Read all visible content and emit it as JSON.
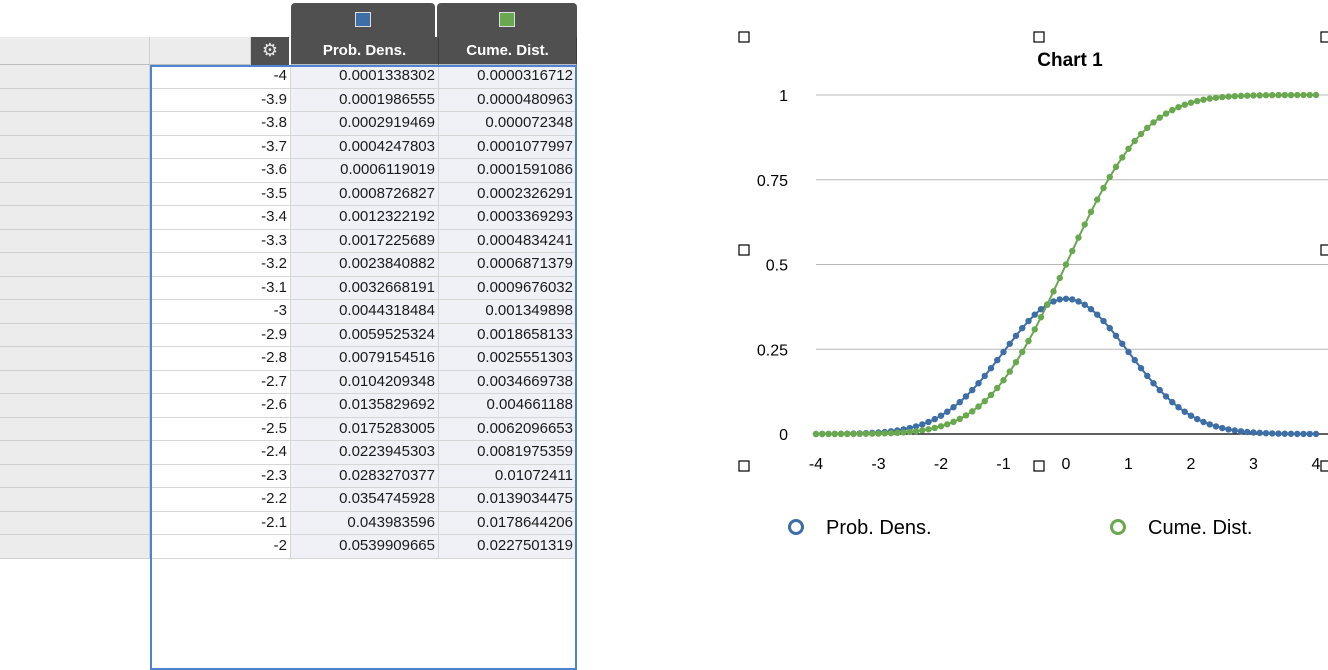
{
  "sheet": {
    "col_header_a": "Prob. Dens.",
    "col_header_b": "Cume. Dist.",
    "gear_icon": "gear-icon",
    "swatch_colors": [
      "#3d6ea5",
      "#6aa84f"
    ],
    "rows": [
      {
        "x": "-4",
        "pd": "0.0001338302",
        "cd": "0.0000316712"
      },
      {
        "x": "-3.9",
        "pd": "0.0001986555",
        "cd": "0.0000480963"
      },
      {
        "x": "-3.8",
        "pd": "0.0002919469",
        "cd": "0.000072348"
      },
      {
        "x": "-3.7",
        "pd": "0.0004247803",
        "cd": "0.0001077997"
      },
      {
        "x": "-3.6",
        "pd": "0.0006119019",
        "cd": "0.0001591086"
      },
      {
        "x": "-3.5",
        "pd": "0.0008726827",
        "cd": "0.0002326291"
      },
      {
        "x": "-3.4",
        "pd": "0.0012322192",
        "cd": "0.0003369293"
      },
      {
        "x": "-3.3",
        "pd": "0.0017225689",
        "cd": "0.0004834241"
      },
      {
        "x": "-3.2",
        "pd": "0.0023840882",
        "cd": "0.0006871379"
      },
      {
        "x": "-3.1",
        "pd": "0.0032668191",
        "cd": "0.0009676032"
      },
      {
        "x": "-3",
        "pd": "0.0044318484",
        "cd": "0.001349898"
      },
      {
        "x": "-2.9",
        "pd": "0.0059525324",
        "cd": "0.0018658133"
      },
      {
        "x": "-2.8",
        "pd": "0.0079154516",
        "cd": "0.0025551303"
      },
      {
        "x": "-2.7",
        "pd": "0.0104209348",
        "cd": "0.0034669738"
      },
      {
        "x": "-2.6",
        "pd": "0.0135829692",
        "cd": "0.004661188"
      },
      {
        "x": "-2.5",
        "pd": "0.0175283005",
        "cd": "0.0062096653"
      },
      {
        "x": "-2.4",
        "pd": "0.0223945303",
        "cd": "0.0081975359"
      },
      {
        "x": "-2.3",
        "pd": "0.0283270377",
        "cd": "0.01072411"
      },
      {
        "x": "-2.2",
        "pd": "0.0354745928",
        "cd": "0.0139034475"
      },
      {
        "x": "-2.1",
        "pd": "0.043983596",
        "cd": "0.0178644206"
      },
      {
        "x": "-2",
        "pd": "0.0539909665",
        "cd": "0.0227501319"
      }
    ]
  },
  "chart_data": {
    "type": "scatter",
    "title": "Chart 1",
    "xlabel": "",
    "ylabel": "",
    "xlim": [
      -4,
      4
    ],
    "ylim": [
      0,
      1
    ],
    "x_ticks": [
      "-4",
      "-3",
      "-2",
      "-1",
      "0",
      "1",
      "2",
      "3",
      "4"
    ],
    "y_ticks": [
      "0",
      "0.25",
      "0.5",
      "0.75",
      "1"
    ],
    "grid": true,
    "legend_position": "bottom",
    "x": [
      -4,
      -3.9,
      -3.8,
      -3.7,
      -3.6,
      -3.5,
      -3.4,
      -3.3,
      -3.2,
      -3.1,
      -3,
      -2.9,
      -2.8,
      -2.7,
      -2.6,
      -2.5,
      -2.4,
      -2.3,
      -2.2,
      -2.1,
      -2,
      -1.9,
      -1.8,
      -1.7,
      -1.6,
      -1.5,
      -1.4,
      -1.3,
      -1.2,
      -1.1,
      -1,
      -0.9,
      -0.8,
      -0.7,
      -0.6,
      -0.5,
      -0.4,
      -0.3,
      -0.2,
      -0.1,
      0,
      0.1,
      0.2,
      0.3,
      0.4,
      0.5,
      0.6,
      0.7,
      0.8,
      0.9,
      1,
      1.1,
      1.2,
      1.3,
      1.4,
      1.5,
      1.6,
      1.7,
      1.8,
      1.9,
      2,
      2.1,
      2.2,
      2.3,
      2.4,
      2.5,
      2.6,
      2.7,
      2.8,
      2.9,
      3,
      3.1,
      3.2,
      3.3,
      3.4,
      3.5,
      3.6,
      3.7,
      3.8,
      3.9,
      4
    ],
    "series": [
      {
        "name": "Prob. Dens.",
        "color": "#3d6ea5",
        "values": [
          0.0001,
          0.0002,
          0.0003,
          0.0004,
          0.0006,
          0.0009,
          0.0012,
          0.0017,
          0.0024,
          0.0033,
          0.0044,
          0.006,
          0.0079,
          0.0104,
          0.0136,
          0.0175,
          0.0224,
          0.0283,
          0.0355,
          0.044,
          0.054,
          0.0656,
          0.079,
          0.094,
          0.1109,
          0.1295,
          0.1497,
          0.1714,
          0.1942,
          0.2179,
          0.242,
          0.2661,
          0.2897,
          0.3123,
          0.3332,
          0.3521,
          0.3683,
          0.3814,
          0.391,
          0.397,
          0.3989,
          0.397,
          0.391,
          0.3814,
          0.3683,
          0.3521,
          0.3332,
          0.3123,
          0.2897,
          0.2661,
          0.242,
          0.2179,
          0.1942,
          0.1714,
          0.1497,
          0.1295,
          0.1109,
          0.094,
          0.079,
          0.0656,
          0.054,
          0.044,
          0.0355,
          0.0283,
          0.0224,
          0.0175,
          0.0136,
          0.0104,
          0.0079,
          0.006,
          0.0044,
          0.0033,
          0.0024,
          0.0017,
          0.0012,
          0.0009,
          0.0006,
          0.0004,
          0.0003,
          0.0002,
          0.0001
        ]
      },
      {
        "name": "Cume. Dist.",
        "color": "#6aa84f",
        "values": [
          0,
          0,
          0.0001,
          0.0001,
          0.0002,
          0.0002,
          0.0003,
          0.0005,
          0.0007,
          0.001,
          0.0013,
          0.0019,
          0.0026,
          0.0035,
          0.0047,
          0.0062,
          0.0082,
          0.0107,
          0.0139,
          0.0179,
          0.0228,
          0.0287,
          0.0359,
          0.0446,
          0.0548,
          0.0668,
          0.0808,
          0.0968,
          0.1151,
          0.1357,
          0.1587,
          0.1841,
          0.2119,
          0.242,
          0.2743,
          0.3085,
          0.3446,
          0.3821,
          0.4207,
          0.4602,
          0.5,
          0.5398,
          0.5793,
          0.6179,
          0.6554,
          0.6915,
          0.7257,
          0.758,
          0.7881,
          0.8159,
          0.8413,
          0.8643,
          0.8849,
          0.9032,
          0.9192,
          0.9332,
          0.9452,
          0.9554,
          0.9641,
          0.9713,
          0.9772,
          0.9821,
          0.9861,
          0.9893,
          0.9918,
          0.9938,
          0.9953,
          0.9965,
          0.9974,
          0.9981,
          0.9987,
          0.999,
          0.9993,
          0.9995,
          0.9997,
          0.9998,
          0.9998,
          0.9999,
          0.9999,
          1,
          1
        ]
      }
    ]
  }
}
